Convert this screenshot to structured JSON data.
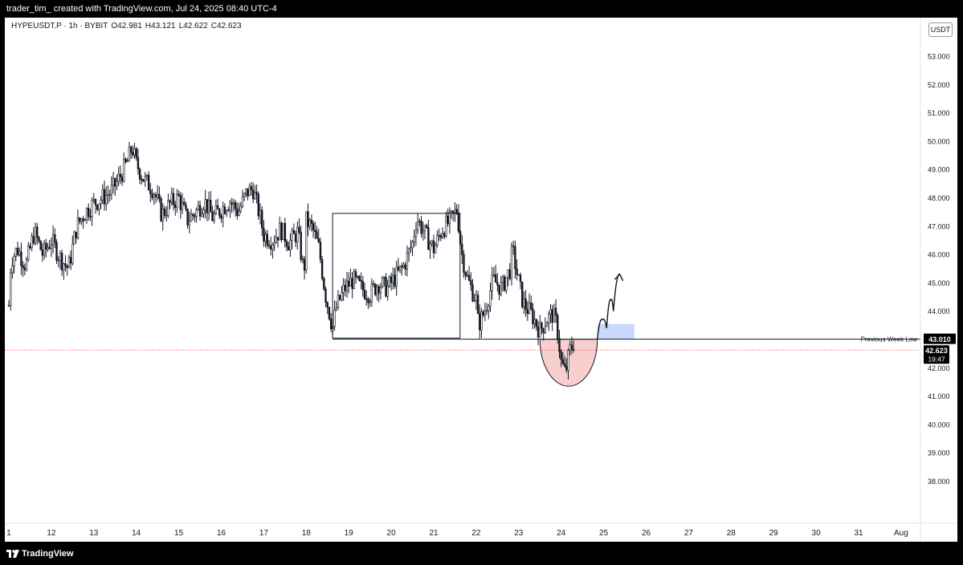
{
  "header": {
    "attribution": "trader_tim_ created with TradingView.com, Jul 24, 2025 08:40 UTC-4"
  },
  "legend": {
    "symbol": "HYPEUSDT.P · 1h · BYBIT",
    "open": "O42.981",
    "high": "H43.121",
    "low": "L42.622",
    "close": "C42.623"
  },
  "currency_button": "USDT",
  "footer": {
    "brand": "TradingView"
  },
  "colors": {
    "candle": "#131722",
    "circle_fill": "#f8cfcf",
    "target_box": "#c8d9fb",
    "last_price_line": "#f23645",
    "axis_label_bg": "#000000"
  },
  "chart_data": {
    "type": "candlestick",
    "symbol": "HYPEUSDT.P",
    "interval": "1h",
    "exchange": "BYBIT",
    "ohlc_current": {
      "open": 42.981,
      "high": 43.121,
      "low": 42.622,
      "close": 42.623
    },
    "y_ticks": [
      "38.000",
      "39.000",
      "40.000",
      "41.000",
      "42.000",
      "43.000",
      "44.000",
      "45.000",
      "46.000",
      "47.000",
      "48.000",
      "49.000",
      "50.000",
      "51.000",
      "52.000",
      "53.000"
    ],
    "x_ticks": [
      "1",
      "12",
      "13",
      "14",
      "15",
      "16",
      "17",
      "18",
      "19",
      "20",
      "21",
      "22",
      "23",
      "24",
      "25",
      "26",
      "27",
      "28",
      "29",
      "30",
      "31",
      "Aug"
    ],
    "ylim": [
      37.1,
      54.2
    ],
    "price_path": [
      [
        11.0,
        44.2
      ],
      [
        11.05,
        45.8
      ],
      [
        11.2,
        46.2
      ],
      [
        11.4,
        45.6
      ],
      [
        11.6,
        46.8
      ],
      [
        11.8,
        46.0
      ],
      [
        12.0,
        46.5
      ],
      [
        12.2,
        45.9
      ],
      [
        12.4,
        45.5
      ],
      [
        12.6,
        47.0
      ],
      [
        12.8,
        47.5
      ],
      [
        13.0,
        47.8
      ],
      [
        13.2,
        48.0
      ],
      [
        13.4,
        48.2
      ],
      [
        13.6,
        48.7
      ],
      [
        13.8,
        49.3
      ],
      [
        13.9,
        49.8
      ],
      [
        14.0,
        49.2
      ],
      [
        14.2,
        48.6
      ],
      [
        14.4,
        48.3
      ],
      [
        14.6,
        47.4
      ],
      [
        14.8,
        47.8
      ],
      [
        15.0,
        48.0
      ],
      [
        15.2,
        47.2
      ],
      [
        15.4,
        47.5
      ],
      [
        15.6,
        47.9
      ],
      [
        15.8,
        47.3
      ],
      [
        16.0,
        47.6
      ],
      [
        16.2,
        47.9
      ],
      [
        16.4,
        47.5
      ],
      [
        16.6,
        48.2
      ],
      [
        16.75,
        48.3
      ],
      [
        16.9,
        47.4
      ],
      [
        17.0,
        46.7
      ],
      [
        17.2,
        46.5
      ],
      [
        17.4,
        46.9
      ],
      [
        17.6,
        46.4
      ],
      [
        17.8,
        46.8
      ],
      [
        17.95,
        45.3
      ],
      [
        18.0,
        47.2
      ],
      [
        18.15,
        46.9
      ],
      [
        18.3,
        46.2
      ],
      [
        18.45,
        44.6
      ],
      [
        18.62,
        43.4
      ],
      [
        18.7,
        44.1
      ],
      [
        18.9,
        44.8
      ],
      [
        19.1,
        45.1
      ],
      [
        19.3,
        44.8
      ],
      [
        19.5,
        44.6
      ],
      [
        19.7,
        45.0
      ],
      [
        19.9,
        44.8
      ],
      [
        20.1,
        45.2
      ],
      [
        20.3,
        45.6
      ],
      [
        20.5,
        46.4
      ],
      [
        20.6,
        47.3
      ],
      [
        20.8,
        46.7
      ],
      [
        21.0,
        46.2
      ],
      [
        21.2,
        46.9
      ],
      [
        21.4,
        47.2
      ],
      [
        21.55,
        47.6
      ],
      [
        21.65,
        46.1
      ],
      [
        21.8,
        45.1
      ],
      [
        22.0,
        44.4
      ],
      [
        22.05,
        43.5
      ],
      [
        22.2,
        44.0
      ],
      [
        22.4,
        45.1
      ],
      [
        22.6,
        44.8
      ],
      [
        22.8,
        45.5
      ],
      [
        22.85,
        46.2
      ],
      [
        22.95,
        45.4
      ],
      [
        23.1,
        44.3
      ],
      [
        23.3,
        43.9
      ],
      [
        23.5,
        43.3
      ],
      [
        23.65,
        43.7
      ],
      [
        23.8,
        43.9
      ],
      [
        23.9,
        43.5
      ],
      [
        24.0,
        42.2
      ],
      [
        24.1,
        41.8
      ],
      [
        24.2,
        42.6
      ],
      [
        24.3,
        42.9
      ]
    ],
    "annotations": [
      {
        "type": "rectangle",
        "x": [
          18.62,
          21.62
        ],
        "y": [
          43.05,
          47.45
        ]
      },
      {
        "type": "horizontal_line",
        "label": "Previous Week Low",
        "y": 43.01,
        "x_start": 18.62
      },
      {
        "type": "semicircle",
        "x": [
          23.5,
          24.85
        ],
        "y_top": 43.01,
        "y_bottom": 41.35
      },
      {
        "type": "projection_path",
        "points": [
          [
            24.85,
            43.01
          ],
          [
            24.97,
            43.7
          ],
          [
            25.07,
            43.4
          ],
          [
            25.17,
            44.4
          ],
          [
            25.23,
            44.0
          ],
          [
            25.38,
            45.3
          ]
        ]
      },
      {
        "type": "target_box",
        "x": [
          24.85,
          25.72
        ],
        "y": [
          43.01,
          43.55
        ]
      },
      {
        "type": "last_price_line",
        "y": 42.623
      }
    ],
    "price_labels": [
      {
        "label": "Previous Week Low",
        "value": "43.010"
      },
      {
        "label": "last",
        "value": "42.623",
        "countdown": "19:47"
      }
    ]
  }
}
